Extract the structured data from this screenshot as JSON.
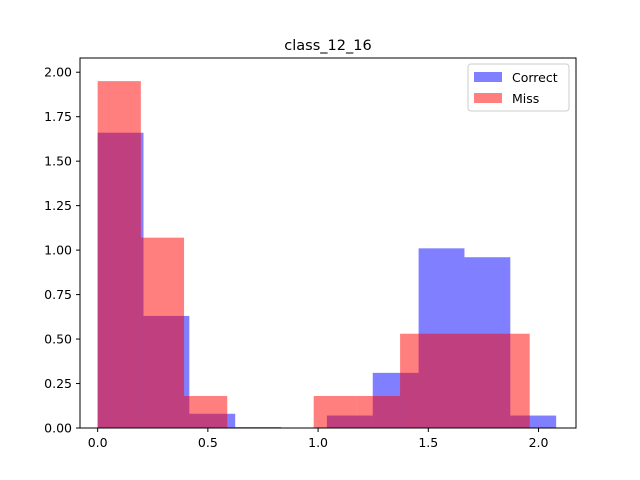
{
  "chart_data": {
    "type": "bar",
    "title": "class_12_16",
    "xlabel": "",
    "ylabel": "",
    "xlim": [
      -0.08,
      2.17
    ],
    "ylim": [
      0,
      2.08
    ],
    "xticks": [
      0.0,
      0.5,
      1.0,
      1.5,
      2.0
    ],
    "xtick_labels": [
      "0.0",
      "0.5",
      "1.0",
      "1.5",
      "2.0"
    ],
    "yticks": [
      0.0,
      0.25,
      0.5,
      0.75,
      1.0,
      1.25,
      1.5,
      1.75,
      2.0
    ],
    "ytick_labels": [
      "0.00",
      "0.25",
      "0.50",
      "0.75",
      "1.00",
      "1.25",
      "1.50",
      "1.75",
      "2.00"
    ],
    "grid": false,
    "legend_position": "top-right",
    "series": [
      {
        "name": "Correct",
        "color": "#0000ff",
        "alpha": 0.5,
        "bin_edges": [
          0.0,
          0.208,
          0.416,
          0.624,
          0.832,
          1.04,
          1.248,
          1.456,
          1.664,
          1.872,
          2.08
        ],
        "values": [
          1.66,
          0.63,
          0.08,
          0.005,
          0.0,
          0.07,
          0.31,
          1.01,
          0.96,
          0.07
        ]
      },
      {
        "name": "Miss",
        "color": "#ff0000",
        "alpha": 0.5,
        "bin_edges": [
          0.0,
          0.196,
          0.392,
          0.588,
          0.784,
          0.98,
          1.176,
          1.372,
          1.568,
          1.764,
          1.96
        ],
        "values": [
          1.95,
          1.07,
          0.18,
          0.0,
          0.0,
          0.18,
          0.18,
          0.53,
          0.53,
          0.53
        ]
      }
    ]
  }
}
